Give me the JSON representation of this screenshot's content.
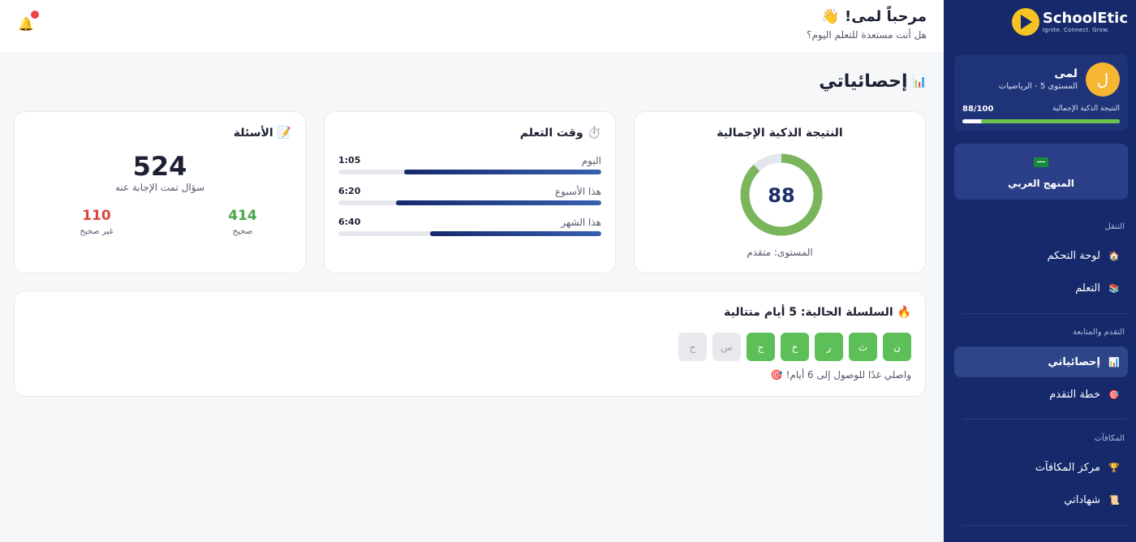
{
  "brand": {
    "name": "SchoolEtic",
    "tagline": "Ignite. Connect. Grow."
  },
  "profile": {
    "avatar_letter": "ل",
    "name": "لمى",
    "level": "المستوى 5 - الرياضيات",
    "score_label": "النتيجة الذكية الإجمالية",
    "score_value": "88/100",
    "score_fraction": 0.88
  },
  "curriculum": {
    "label": "المنهج العربي",
    "icon": "saudi-flag-icon"
  },
  "nav": {
    "section_navigation": "التنقل",
    "dashboard": "لوحة التحكم",
    "learning": "التعلم",
    "section_progress": "التقدم والمتابعة",
    "stats": "إحصائياتي",
    "plan": "خطة التقدم",
    "section_rewards": "المكافآت",
    "rewards": "مركز المكافآت",
    "certificates": "شهاداتي"
  },
  "header": {
    "welcome": "مرحباً لمى! 👋",
    "subtitle": "هل أنت مستعدة للتعلم اليوم؟"
  },
  "page": {
    "title": "إحصائياتي",
    "title_icon": "📊"
  },
  "score_card": {
    "title": "النتيجة الذكية الإجمالية",
    "value": "88",
    "percent": 88,
    "level": "المستوى: متقدم",
    "accent": "#7ab55c"
  },
  "time_card": {
    "title": "⏱️ وقت التعلم",
    "rows": [
      {
        "label": "اليوم",
        "value": "1:05",
        "fill": 0.75
      },
      {
        "label": "هذا الأسبوع",
        "value": "6:20",
        "fill": 0.78
      },
      {
        "label": "هذا الشهر",
        "value": "6:40",
        "fill": 0.65
      }
    ]
  },
  "questions_card": {
    "title": "📝 الأسئلة",
    "total": "524",
    "total_label": "سؤال تمت الإجابة عنه",
    "correct": "414",
    "correct_label": "صحيح",
    "wrong": "110",
    "wrong_label": "غير صحيح"
  },
  "streak_card": {
    "title": "🔥 السلسلة الحالية: 5 أيام متتالية",
    "days": [
      {
        "label": "ن",
        "done": true
      },
      {
        "label": "ث",
        "done": true
      },
      {
        "label": "ر",
        "done": true
      },
      {
        "label": "خ",
        "done": true
      },
      {
        "label": "ج",
        "done": true
      },
      {
        "label": "س",
        "done": false
      },
      {
        "label": "ح",
        "done": false
      }
    ],
    "message": "واصلي غدًا للوصول إلى 6 أيام! 🎯"
  }
}
